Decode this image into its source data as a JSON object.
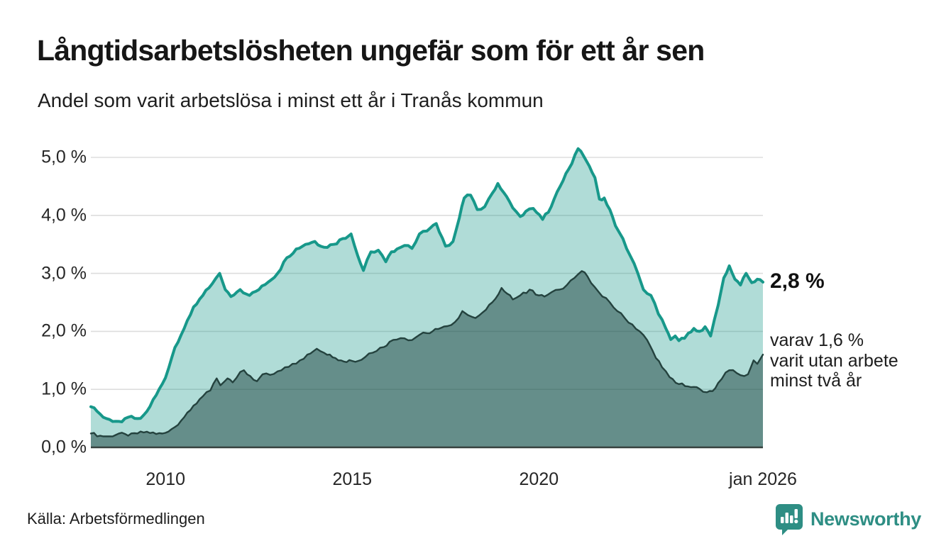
{
  "header": {
    "title": "Långtidsarbetslösheten ungefär som för ett år sen",
    "subtitle": "Andel som varit arbetslösa i minst ett år i Tranås kommun"
  },
  "chart_data": {
    "type": "area",
    "x_unit": "year",
    "x_domain": [
      2008.0,
      2026.0
    ],
    "ylim": [
      0,
      5.33
    ],
    "grid": true,
    "yticks": [
      {
        "label": "0,0 %",
        "value": 0
      },
      {
        "label": "1,0 %",
        "value": 1
      },
      {
        "label": "2,0 %",
        "value": 2
      },
      {
        "label": "3,0 %",
        "value": 3
      },
      {
        "label": "4,0 %",
        "value": 4
      },
      {
        "label": "5,0 %",
        "value": 5
      }
    ],
    "xticks": [
      {
        "label": "2010",
        "year": 2010
      },
      {
        "label": "2015",
        "year": 2015
      },
      {
        "label": "2020",
        "year": 2020
      },
      {
        "label": "jan 2026",
        "year": 2026
      }
    ],
    "series": [
      {
        "name": "arbetslösa minst ett år",
        "points": [
          [
            2008.0,
            0.7
          ],
          [
            2008.17,
            0.62
          ],
          [
            2008.33,
            0.52
          ],
          [
            2008.5,
            0.48
          ],
          [
            2008.67,
            0.45
          ],
          [
            2008.83,
            0.44
          ],
          [
            2009.0,
            0.52
          ],
          [
            2009.17,
            0.5
          ],
          [
            2009.33,
            0.5
          ],
          [
            2009.5,
            0.62
          ],
          [
            2009.75,
            0.9
          ],
          [
            2010.0,
            1.2
          ],
          [
            2010.25,
            1.72
          ],
          [
            2010.5,
            2.05
          ],
          [
            2010.75,
            2.42
          ],
          [
            2011.0,
            2.62
          ],
          [
            2011.25,
            2.82
          ],
          [
            2011.45,
            3.0
          ],
          [
            2011.6,
            2.72
          ],
          [
            2011.75,
            2.6
          ],
          [
            2012.0,
            2.72
          ],
          [
            2012.25,
            2.62
          ],
          [
            2012.5,
            2.72
          ],
          [
            2012.75,
            2.85
          ],
          [
            2013.0,
            3.0
          ],
          [
            2013.25,
            3.27
          ],
          [
            2013.5,
            3.42
          ],
          [
            2013.75,
            3.5
          ],
          [
            2014.0,
            3.55
          ],
          [
            2014.25,
            3.45
          ],
          [
            2014.5,
            3.5
          ],
          [
            2014.75,
            3.6
          ],
          [
            2014.97,
            3.68
          ],
          [
            2015.15,
            3.3
          ],
          [
            2015.3,
            3.05
          ],
          [
            2015.5,
            3.37
          ],
          [
            2015.7,
            3.4
          ],
          [
            2015.9,
            3.2
          ],
          [
            2016.05,
            3.37
          ],
          [
            2016.2,
            3.42
          ],
          [
            2016.4,
            3.48
          ],
          [
            2016.6,
            3.43
          ],
          [
            2016.8,
            3.68
          ],
          [
            2017.0,
            3.73
          ],
          [
            2017.25,
            3.86
          ],
          [
            2017.5,
            3.47
          ],
          [
            2017.7,
            3.55
          ],
          [
            2017.87,
            3.96
          ],
          [
            2018.0,
            4.3
          ],
          [
            2018.17,
            4.35
          ],
          [
            2018.35,
            4.1
          ],
          [
            2018.55,
            4.15
          ],
          [
            2018.75,
            4.38
          ],
          [
            2018.9,
            4.55
          ],
          [
            2019.05,
            4.4
          ],
          [
            2019.3,
            4.13
          ],
          [
            2019.5,
            3.98
          ],
          [
            2019.65,
            4.07
          ],
          [
            2019.85,
            4.12
          ],
          [
            2020.1,
            3.93
          ],
          [
            2020.33,
            4.15
          ],
          [
            2020.57,
            4.5
          ],
          [
            2020.8,
            4.8
          ],
          [
            2021.05,
            5.15
          ],
          [
            2021.2,
            5.02
          ],
          [
            2021.35,
            4.85
          ],
          [
            2021.5,
            4.65
          ],
          [
            2021.62,
            4.28
          ],
          [
            2021.75,
            4.3
          ],
          [
            2021.9,
            4.1
          ],
          [
            2022.05,
            3.82
          ],
          [
            2022.25,
            3.6
          ],
          [
            2022.45,
            3.3
          ],
          [
            2022.65,
            3.0
          ],
          [
            2022.8,
            2.72
          ],
          [
            2023.0,
            2.62
          ],
          [
            2023.2,
            2.3
          ],
          [
            2023.4,
            2.05
          ],
          [
            2023.53,
            1.86
          ],
          [
            2023.65,
            1.92
          ],
          [
            2023.75,
            1.84
          ],
          [
            2023.9,
            1.88
          ],
          [
            2024.0,
            1.97
          ],
          [
            2024.15,
            2.05
          ],
          [
            2024.3,
            2.0
          ],
          [
            2024.45,
            2.08
          ],
          [
            2024.6,
            1.92
          ],
          [
            2024.8,
            2.45
          ],
          [
            2024.95,
            2.92
          ],
          [
            2025.1,
            3.13
          ],
          [
            2025.25,
            2.9
          ],
          [
            2025.4,
            2.8
          ],
          [
            2025.55,
            3.0
          ],
          [
            2025.7,
            2.84
          ],
          [
            2025.85,
            2.9
          ],
          [
            2026.0,
            2.85
          ]
        ]
      },
      {
        "name": "varav arbetslösa minst två år",
        "points": [
          [
            2008.0,
            0.24
          ],
          [
            2008.25,
            0.2
          ],
          [
            2008.5,
            0.19
          ],
          [
            2008.75,
            0.24
          ],
          [
            2009.0,
            0.2
          ],
          [
            2009.25,
            0.24
          ],
          [
            2009.5,
            0.27
          ],
          [
            2009.75,
            0.23
          ],
          [
            2010.0,
            0.25
          ],
          [
            2010.25,
            0.35
          ],
          [
            2010.5,
            0.52
          ],
          [
            2010.75,
            0.72
          ],
          [
            2011.0,
            0.88
          ],
          [
            2011.2,
            0.98
          ],
          [
            2011.37,
            1.19
          ],
          [
            2011.47,
            1.07
          ],
          [
            2011.66,
            1.19
          ],
          [
            2011.8,
            1.12
          ],
          [
            2012.0,
            1.3
          ],
          [
            2012.1,
            1.33
          ],
          [
            2012.27,
            1.23
          ],
          [
            2012.45,
            1.14
          ],
          [
            2012.6,
            1.26
          ],
          [
            2012.8,
            1.25
          ],
          [
            2013.0,
            1.31
          ],
          [
            2013.2,
            1.38
          ],
          [
            2013.4,
            1.44
          ],
          [
            2013.6,
            1.5
          ],
          [
            2013.8,
            1.6
          ],
          [
            2014.05,
            1.7
          ],
          [
            2014.25,
            1.63
          ],
          [
            2014.4,
            1.6
          ],
          [
            2014.55,
            1.54
          ],
          [
            2014.7,
            1.5
          ],
          [
            2015.0,
            1.49
          ],
          [
            2015.25,
            1.51
          ],
          [
            2015.45,
            1.62
          ],
          [
            2015.65,
            1.66
          ],
          [
            2015.85,
            1.73
          ],
          [
            2016.0,
            1.82
          ],
          [
            2016.2,
            1.86
          ],
          [
            2016.4,
            1.88
          ],
          [
            2016.6,
            1.85
          ],
          [
            2016.8,
            1.94
          ],
          [
            2017.0,
            1.97
          ],
          [
            2017.15,
            2.0
          ],
          [
            2017.3,
            2.04
          ],
          [
            2017.55,
            2.09
          ],
          [
            2017.75,
            2.16
          ],
          [
            2017.95,
            2.35
          ],
          [
            2018.1,
            2.28
          ],
          [
            2018.3,
            2.23
          ],
          [
            2018.5,
            2.33
          ],
          [
            2018.75,
            2.5
          ],
          [
            2019.0,
            2.75
          ],
          [
            2019.15,
            2.65
          ],
          [
            2019.3,
            2.55
          ],
          [
            2019.5,
            2.62
          ],
          [
            2019.75,
            2.72
          ],
          [
            2020.0,
            2.62
          ],
          [
            2020.15,
            2.6
          ],
          [
            2020.35,
            2.68
          ],
          [
            2020.55,
            2.72
          ],
          [
            2020.75,
            2.8
          ],
          [
            2020.95,
            2.92
          ],
          [
            2021.15,
            3.04
          ],
          [
            2021.3,
            2.95
          ],
          [
            2021.5,
            2.76
          ],
          [
            2021.7,
            2.6
          ],
          [
            2021.9,
            2.5
          ],
          [
            2022.1,
            2.35
          ],
          [
            2022.3,
            2.23
          ],
          [
            2022.5,
            2.12
          ],
          [
            2022.7,
            2.0
          ],
          [
            2022.9,
            1.85
          ],
          [
            2023.05,
            1.66
          ],
          [
            2023.3,
            1.38
          ],
          [
            2023.5,
            1.21
          ],
          [
            2023.75,
            1.09
          ],
          [
            2024.0,
            1.05
          ],
          [
            2024.3,
            1.01
          ],
          [
            2024.5,
            0.95
          ],
          [
            2024.65,
            0.97
          ],
          [
            2024.8,
            1.11
          ],
          [
            2025.0,
            1.29
          ],
          [
            2025.1,
            1.33
          ],
          [
            2025.3,
            1.28
          ],
          [
            2025.5,
            1.23
          ],
          [
            2025.6,
            1.26
          ],
          [
            2025.75,
            1.5
          ],
          [
            2025.85,
            1.44
          ],
          [
            2026.0,
            1.6
          ]
        ]
      }
    ],
    "annotations": {
      "total_label": "2,8 %",
      "two_year_lines": [
        "varav 1,6 %",
        "varit utan arbete",
        "minst två år"
      ]
    },
    "legend_position": "none"
  },
  "footer": {
    "source": "Källa: Arbetsförmedlingen",
    "brand": "Newsworthy"
  },
  "colors": {
    "teal_line": "#17988a",
    "teal_fill": "rgba(23,152,138,0.34)",
    "dark_line": "#24423e",
    "dark_fill": "rgba(18,56,51,0.47)",
    "grid": "#dddddd",
    "baseline": "#37423f",
    "brand_teal": "#2e8e84",
    "text": "#1a1a1a"
  }
}
